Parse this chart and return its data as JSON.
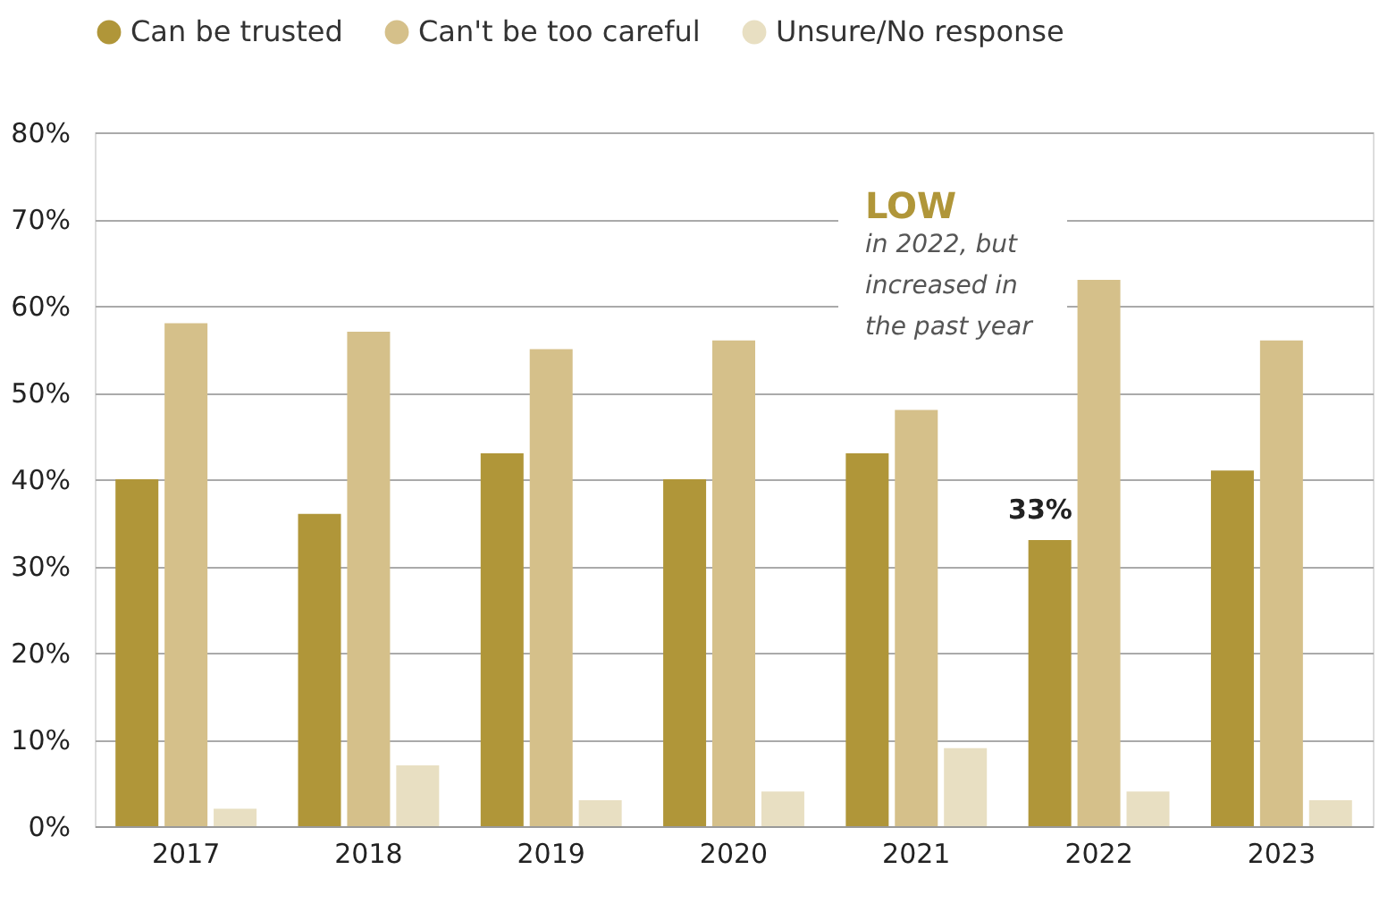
{
  "chart_data": {
    "type": "bar",
    "categories": [
      "2017",
      "2018",
      "2019",
      "2020",
      "2021",
      "2022",
      "2023"
    ],
    "series": [
      {
        "name": "Can be trusted",
        "color": "#b09639",
        "values": [
          40,
          36,
          43,
          40,
          43,
          33,
          41
        ]
      },
      {
        "name": "Can't be too careful",
        "color": "#d5c08a",
        "values": [
          58,
          57,
          55,
          56,
          48,
          63,
          56
        ]
      },
      {
        "name": "Unsure/No response",
        "color": "#e8dfc2",
        "values": [
          2,
          7,
          3,
          4,
          9,
          4,
          3
        ]
      }
    ],
    "ylim": [
      0,
      80
    ],
    "yticks": [
      {
        "value": 0,
        "label": "0%"
      },
      {
        "value": 10,
        "label": "10%"
      },
      {
        "value": 20,
        "label": "20%"
      },
      {
        "value": 30,
        "label": "30%"
      },
      {
        "value": 40,
        "label": "40%"
      },
      {
        "value": 50,
        "label": "50%"
      },
      {
        "value": 60,
        "label": "60%"
      },
      {
        "value": 70,
        "label": "70%"
      },
      {
        "value": 80,
        "label": "80%"
      }
    ],
    "grid": "y",
    "legend": "top",
    "annotations": [
      "LOW",
      "in 2022, but increased in the past year",
      "33%"
    ]
  }
}
